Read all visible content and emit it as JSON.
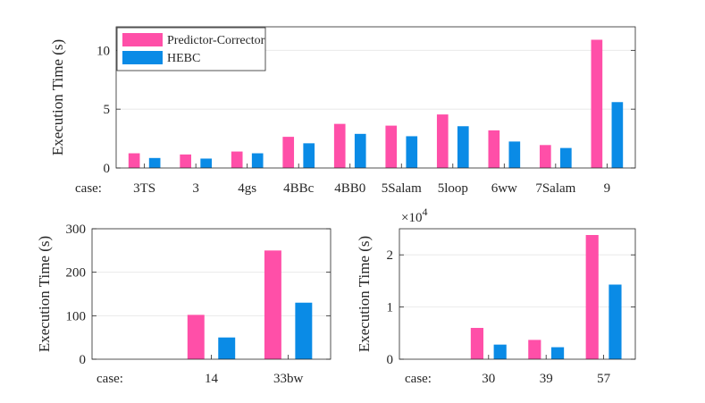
{
  "colors": {
    "predictor_corrector": "#ff4fa8",
    "hebc": "#0a8be6"
  },
  "chart_data": [
    {
      "type": "bar",
      "title": "",
      "xlabel": "case:",
      "ylabel": "Execution Time (s)",
      "ylim": [
        0,
        12
      ],
      "yticks": [
        0,
        5,
        10
      ],
      "ytick_labels": [
        "0",
        "5",
        "10"
      ],
      "exponent": "",
      "grid": true,
      "legend": {
        "position": "top-left",
        "entries": [
          "Predictor-Corrector",
          "HEBC"
        ]
      },
      "categories": [
        "3TS",
        "3",
        "4gs",
        "4BBc",
        "4BB0",
        "5Salam",
        "5loop",
        "6ww",
        "7Salam",
        "9"
      ],
      "series": [
        {
          "name": "Predictor-Corrector",
          "values": [
            1.25,
            1.15,
            1.4,
            2.65,
            3.75,
            3.6,
            4.55,
            3.2,
            1.95,
            10.9
          ]
        },
        {
          "name": "HEBC",
          "values": [
            0.85,
            0.8,
            1.25,
            2.1,
            2.9,
            2.7,
            3.55,
            2.25,
            1.7,
            5.6
          ]
        }
      ]
    },
    {
      "type": "bar",
      "title": "",
      "xlabel": "case:",
      "ylabel": "Execution Time (s)",
      "ylim": [
        0,
        300
      ],
      "yticks": [
        0,
        100,
        200,
        300
      ],
      "ytick_labels": [
        "0",
        "100",
        "200",
        "300"
      ],
      "exponent": "",
      "grid": true,
      "categories": [
        "14",
        "33bw"
      ],
      "series": [
        {
          "name": "Predictor-Corrector",
          "values": [
            102,
            250
          ]
        },
        {
          "name": "HEBC",
          "values": [
            50,
            130
          ]
        }
      ]
    },
    {
      "type": "bar",
      "title": "",
      "xlabel": "case:",
      "ylabel": "Execution Time (s)",
      "ylim": [
        0,
        25000
      ],
      "yticks": [
        0,
        10000,
        20000
      ],
      "ytick_labels": [
        "0",
        "1",
        "2"
      ],
      "exponent": "×10",
      "exponent_power": "4",
      "grid": true,
      "categories": [
        "30",
        "39",
        "57"
      ],
      "series": [
        {
          "name": "Predictor-Corrector",
          "values": [
            6000,
            3700,
            23800
          ]
        },
        {
          "name": "HEBC",
          "values": [
            2800,
            2300,
            14300
          ]
        }
      ]
    }
  ]
}
